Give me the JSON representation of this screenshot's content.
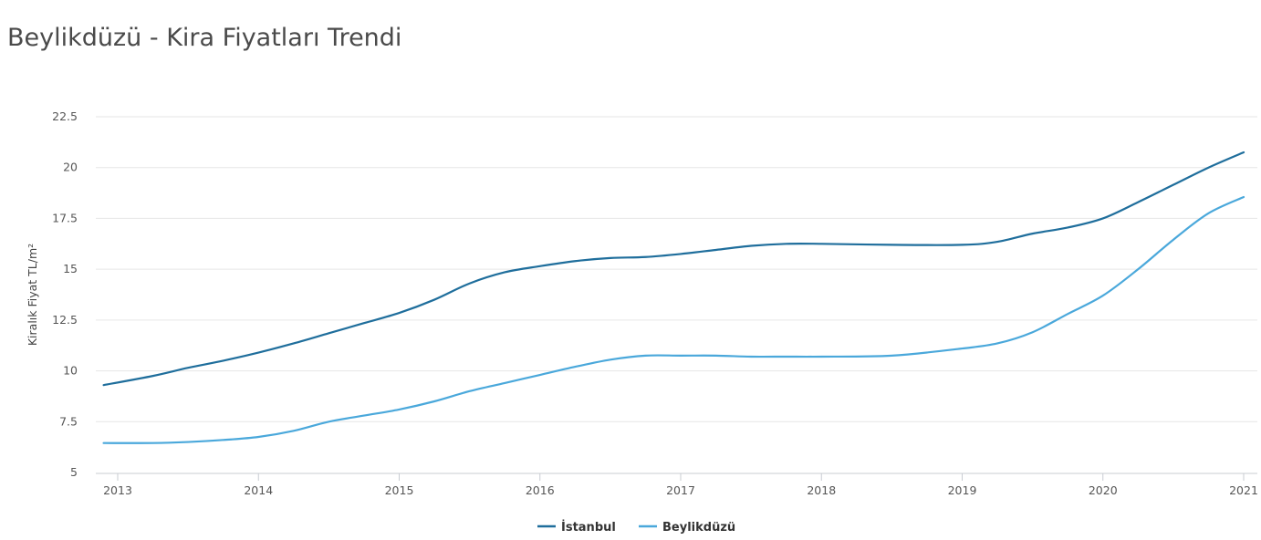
{
  "title": "Beylikdüzü - Kira Fiyatları Trendi",
  "chart_data": {
    "type": "line",
    "title": "Beylikdüzü - Kira Fiyatları Trendi",
    "xlabel": "",
    "ylabel": "Kiralık Fiyat TL/m²",
    "xlim": [
      2013,
      2021
    ],
    "ylim": [
      5,
      22.5
    ],
    "x_ticks": [
      "2013",
      "2014",
      "2015",
      "2016",
      "2017",
      "2018",
      "2019",
      "2020",
      "2021"
    ],
    "y_ticks": [
      "5",
      "7.5",
      "10",
      "12.5",
      "15",
      "17.5",
      "20",
      "22.5"
    ],
    "grid": true,
    "legend": "bottom-center",
    "series": [
      {
        "name": "İstanbul",
        "color": "#1f6e9c",
        "x": [
          2012.9,
          2013.25,
          2013.5,
          2013.75,
          2014.0,
          2014.25,
          2014.5,
          2014.75,
          2015.0,
          2015.25,
          2015.5,
          2015.75,
          2016.0,
          2016.25,
          2016.5,
          2016.75,
          2017.0,
          2017.25,
          2017.5,
          2017.75,
          2018.0,
          2018.5,
          2019.0,
          2019.25,
          2019.5,
          2019.75,
          2020.0,
          2020.25,
          2020.5,
          2020.75,
          2021.0
        ],
        "values": [
          9.3,
          9.75,
          10.15,
          10.5,
          10.9,
          11.35,
          11.85,
          12.35,
          12.85,
          13.5,
          14.3,
          14.85,
          15.15,
          15.4,
          15.55,
          15.6,
          15.75,
          15.95,
          16.15,
          16.25,
          16.25,
          16.2,
          16.2,
          16.35,
          16.75,
          17.05,
          17.5,
          18.3,
          19.15,
          20.0,
          20.75
        ]
      },
      {
        "name": "Beylikdüzü",
        "color": "#4aa8db",
        "x": [
          2012.9,
          2013.25,
          2013.5,
          2013.75,
          2014.0,
          2014.25,
          2014.5,
          2014.75,
          2015.0,
          2015.25,
          2015.5,
          2015.75,
          2016.0,
          2016.25,
          2016.5,
          2016.75,
          2017.0,
          2017.25,
          2017.5,
          2017.75,
          2018.0,
          2018.5,
          2019.0,
          2019.25,
          2019.5,
          2019.75,
          2020.0,
          2020.25,
          2020.5,
          2020.75,
          2021.0
        ],
        "values": [
          6.45,
          6.45,
          6.5,
          6.6,
          6.75,
          7.05,
          7.5,
          7.8,
          8.1,
          8.5,
          9.0,
          9.4,
          9.8,
          10.2,
          10.55,
          10.75,
          10.75,
          10.75,
          10.7,
          10.7,
          10.7,
          10.75,
          11.1,
          11.35,
          11.9,
          12.8,
          13.7,
          15.0,
          16.45,
          17.75,
          18.55
        ]
      }
    ]
  }
}
